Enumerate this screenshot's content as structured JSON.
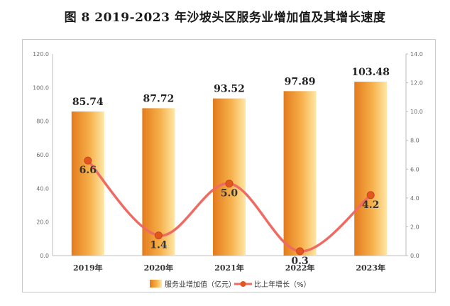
{
  "chart_data": {
    "type": "bar",
    "title": "图 8    2019-2023 年沙坡头区服务业增加值及其增长速度",
    "categories": [
      "2019年",
      "2020年",
      "2021年",
      "2022年",
      "2023年"
    ],
    "series": [
      {
        "name": "服务业增加值（亿元）",
        "type": "bar",
        "axis": "left",
        "values": [
          85.74,
          87.72,
          93.52,
          97.89,
          103.48
        ]
      },
      {
        "name": "比上年增长（%）",
        "type": "line",
        "axis": "right",
        "values": [
          6.6,
          1.4,
          5.0,
          0.3,
          4.2
        ]
      }
    ],
    "value_labels": {
      "bar": [
        "85.74",
        "87.72",
        "93.52",
        "97.89",
        "103.48"
      ],
      "line": [
        "6.6",
        "1.4",
        "5.0",
        "0.3",
        "4.2"
      ]
    },
    "ylim_left": [
      0,
      120
    ],
    "yticks_left": [
      "0.0",
      "20.0",
      "40.0",
      "60.0",
      "80.0",
      "100.0",
      "120.0"
    ],
    "ylim_right": [
      0,
      14
    ],
    "yticks_right": [
      "0.0",
      "2.0",
      "4.0",
      "6.0",
      "8.0",
      "10.0",
      "12.0",
      "14.0"
    ],
    "legend": "bottom-center",
    "grid": false,
    "colors": {
      "bar_dark": "#e37b1d",
      "bar_light": "#ffe7a6",
      "line": "#ef6a62",
      "marker": "#e2571f"
    }
  }
}
